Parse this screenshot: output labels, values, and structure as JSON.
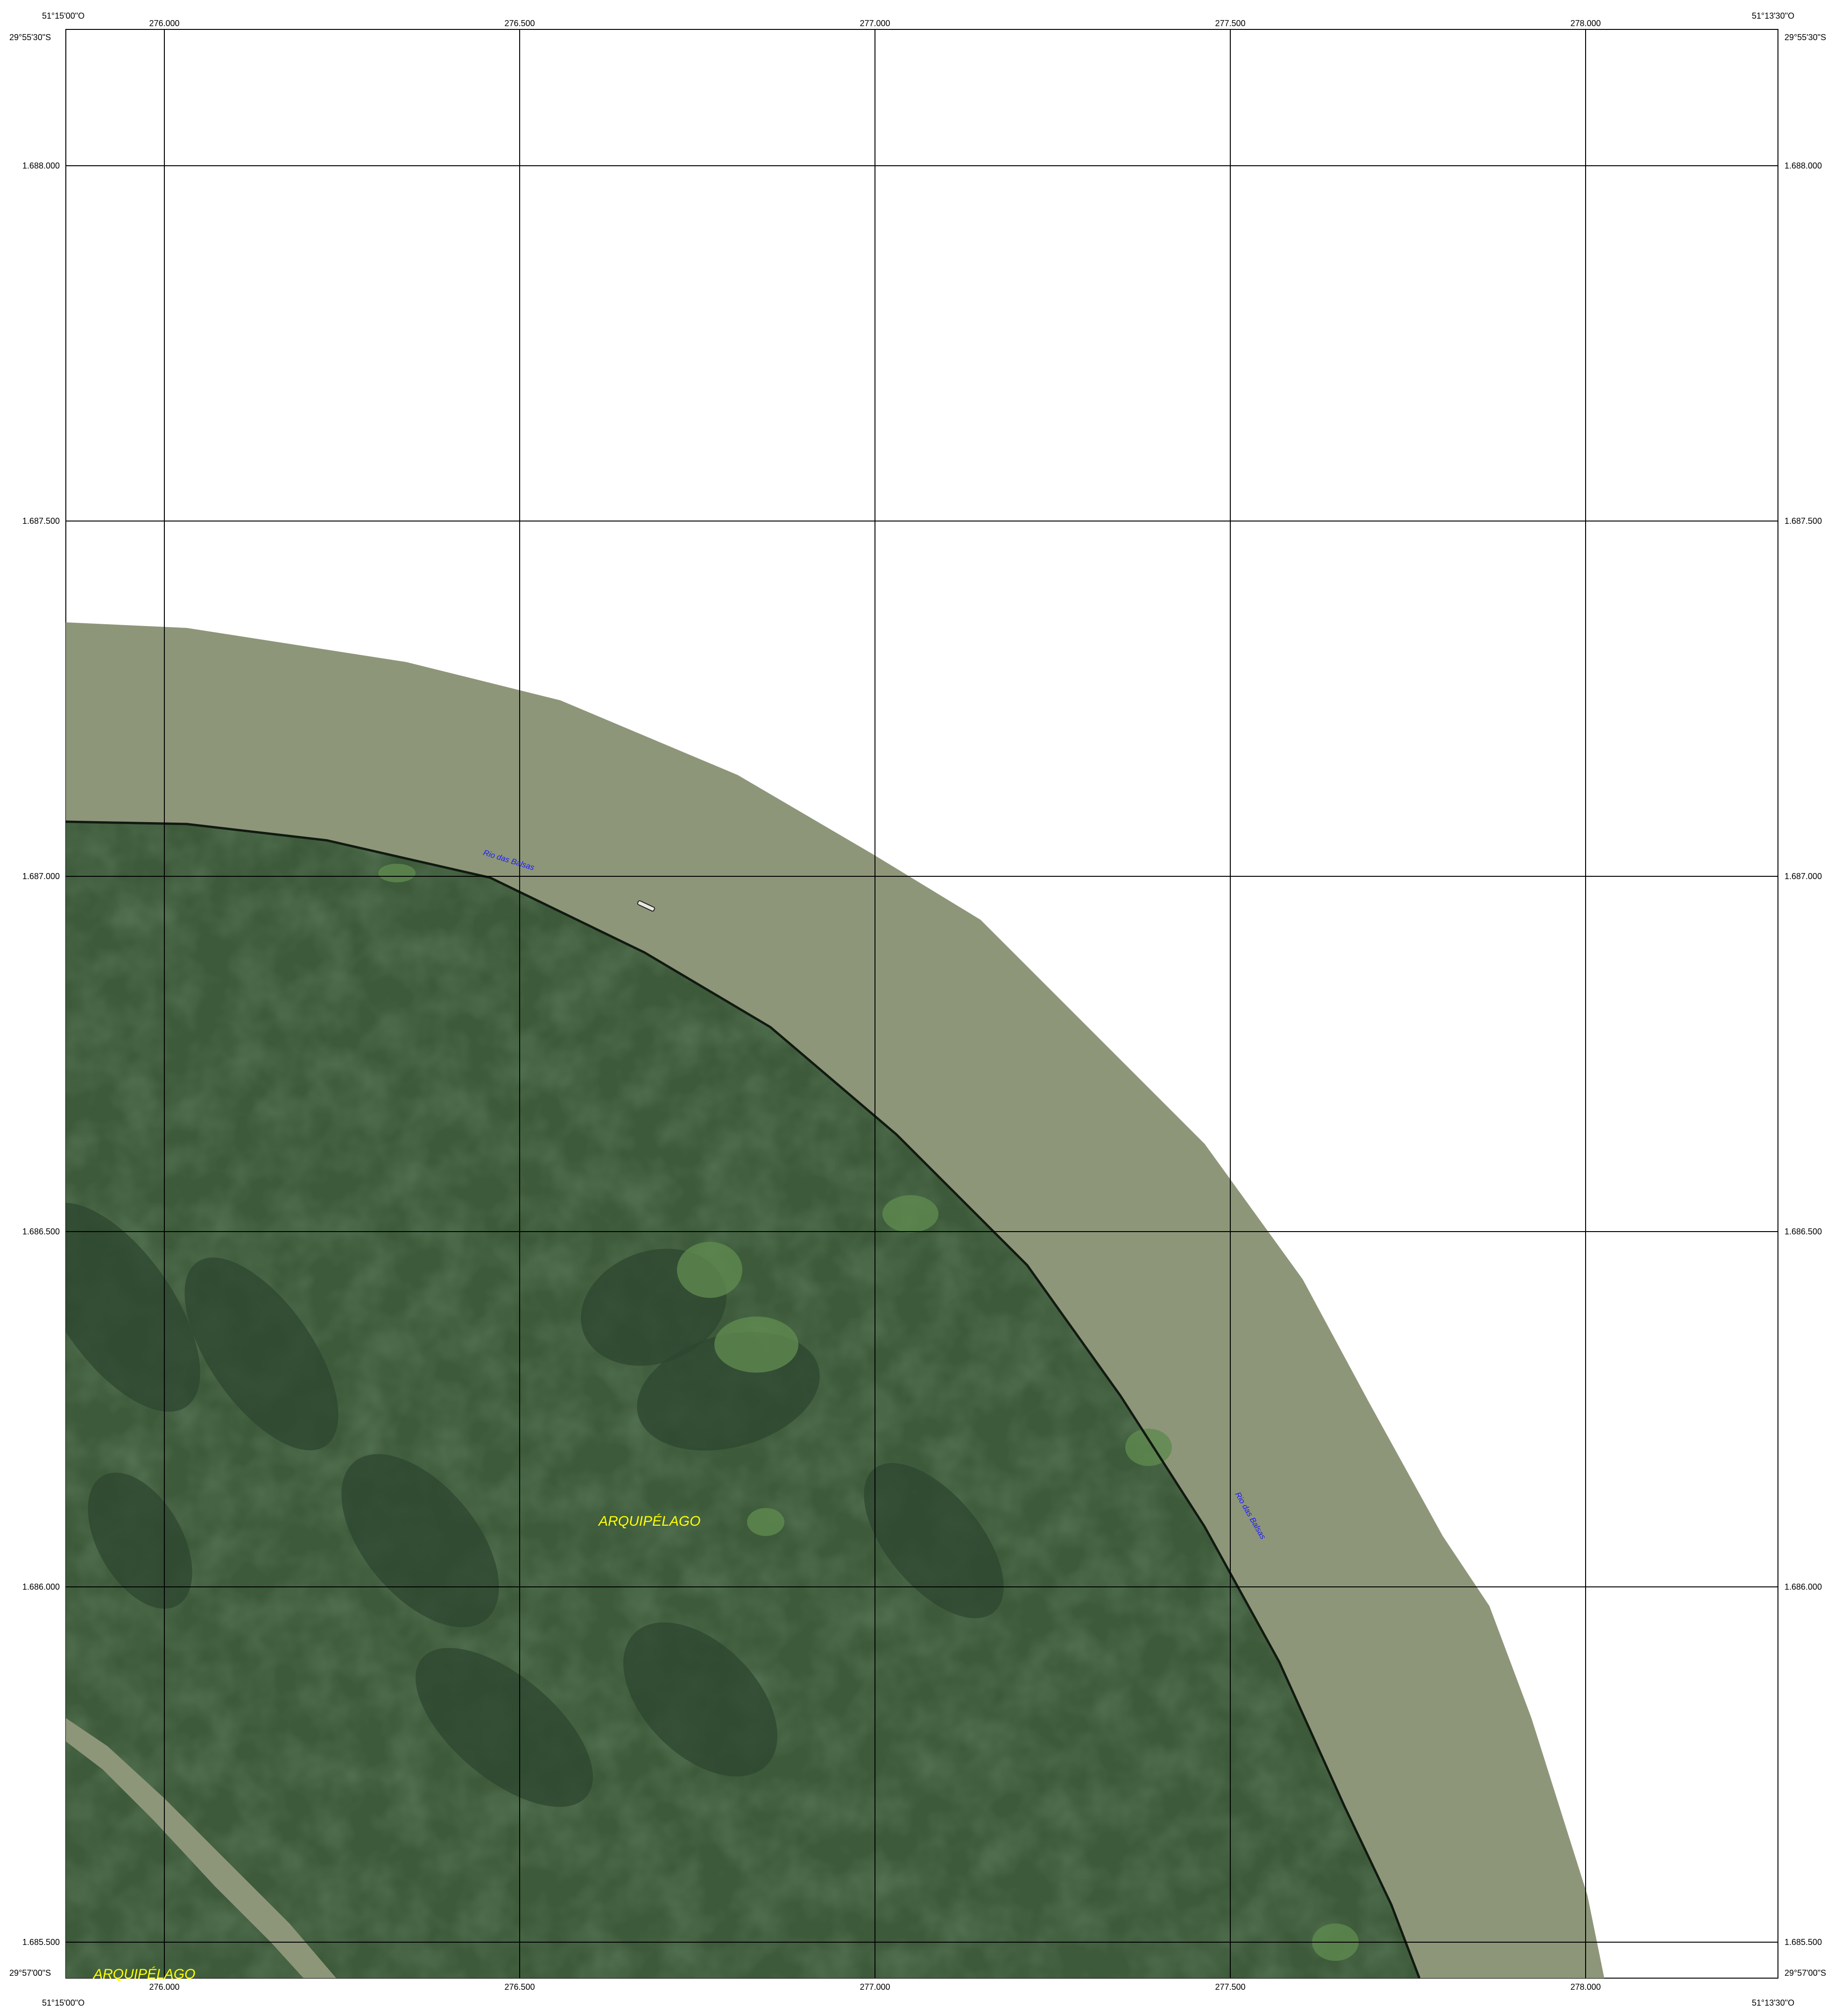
{
  "corners": {
    "top_left_lon": "51°15'00\"O",
    "top_left_lat": "29°55'30\"S",
    "top_right_lon": "51°13'30\"O",
    "top_right_lat": "29°55'30\"S",
    "bottom_left_lon": "51°15'00\"O",
    "bottom_left_lat": "29°57'00\"S",
    "bottom_right_lon": "51°13'30\"O",
    "bottom_right_lat": "29°57'00\"S"
  },
  "grid": {
    "eastings": [
      "276.000",
      "276.500",
      "277.000",
      "277.500",
      "278.000"
    ],
    "northings": [
      "1.688.000",
      "1.687.500",
      "1.687.000",
      "1.686.500",
      "1.686.000",
      "1.685.500"
    ]
  },
  "labels": {
    "arquipelago_center": "ARQUIPÉLAGO",
    "arquipelago_southwest": "ARQUIPÉLAGO",
    "river_north": "Rio das Balsas",
    "river_east": "Rio das Balsas"
  },
  "colors": {
    "river_water": "#8e967a",
    "vegetation_dark": "#2e4530",
    "vegetation_mid": "#3d5a3a",
    "vegetation_light": "#5f8a4f",
    "shoreline": "#111a10",
    "grid_line": "#000000",
    "place_label": "#ffff00",
    "river_label": "#1a1aff"
  }
}
